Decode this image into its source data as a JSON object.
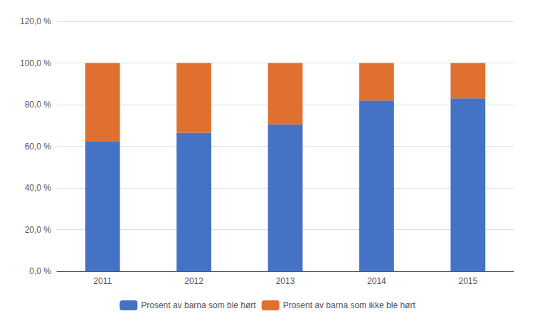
{
  "chart_data": {
    "type": "bar",
    "stacked": true,
    "categories": [
      "2011",
      "2012",
      "2013",
      "2014",
      "2015"
    ],
    "series": [
      {
        "name": "Prosent av barna som ble hørt",
        "color": "#4472C4",
        "values": [
          0.625,
          0.665,
          0.705,
          0.82,
          0.83
        ]
      },
      {
        "name": "Prosent av barna som ikke ble hørt",
        "color": "#E07030",
        "values": [
          0.375,
          0.335,
          0.295,
          0.18,
          0.17
        ]
      }
    ],
    "ylim": [
      0,
      1.2
    ],
    "yticks": [
      {
        "value": 0.0,
        "label": "0,0 %"
      },
      {
        "value": 0.2,
        "label": "20,0 %"
      },
      {
        "value": 0.4,
        "label": "40,0 %"
      },
      {
        "value": 0.6,
        "label": "60,0 %"
      },
      {
        "value": 0.8,
        "label": "80,0 %"
      },
      {
        "value": 1.0,
        "label": "100,0 %"
      },
      {
        "value": 1.2,
        "label": "120,0 %"
      }
    ],
    "grid": true,
    "legend": "bottom"
  }
}
